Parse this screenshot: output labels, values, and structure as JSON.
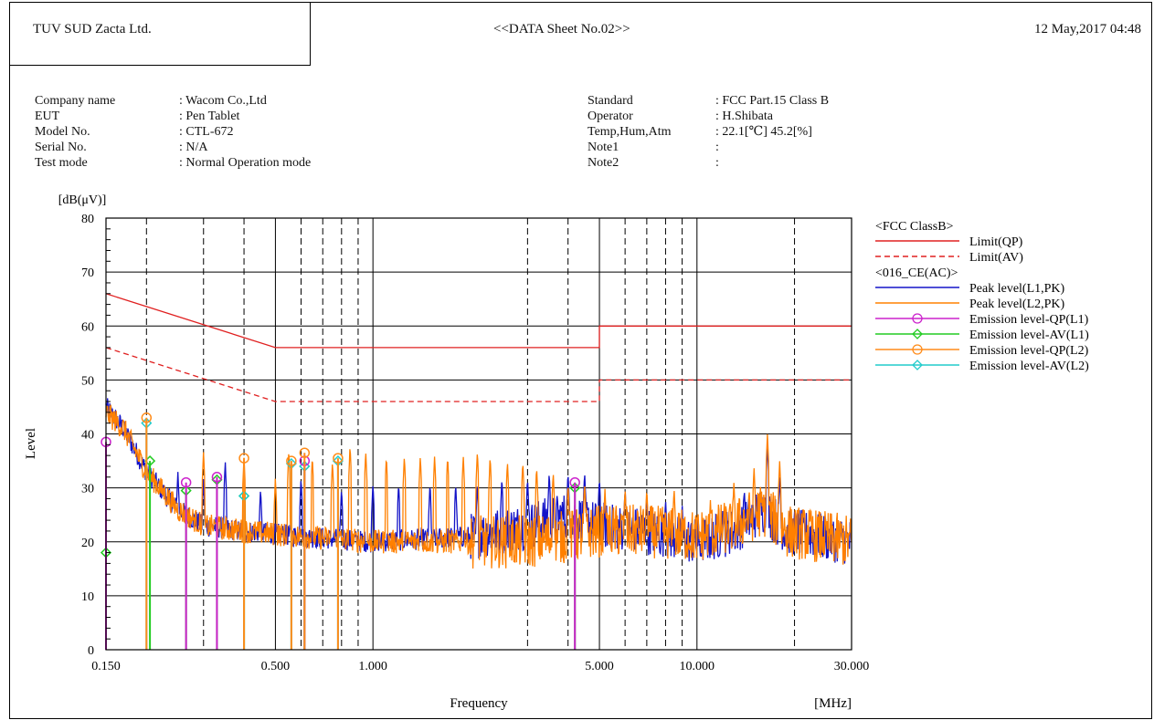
{
  "header": {
    "company": "TUV SUD Zacta Ltd.",
    "sheet_title": "<<DATA Sheet No.02>>",
    "datetime": "12 May,2017 04:48"
  },
  "info_left": [
    {
      "label": "Company name",
      "value": ": Wacom Co.,Ltd"
    },
    {
      "label": "EUT",
      "value": ": Pen Tablet"
    },
    {
      "label": "Model No.",
      "value": ": CTL-672"
    },
    {
      "label": "Serial No.",
      "value": ": N/A"
    },
    {
      "label": "Test mode",
      "value": ": Normal Operation mode"
    }
  ],
  "info_right": [
    {
      "label": "Standard",
      "value": ": FCC Part.15 Class B"
    },
    {
      "label": "Operator",
      "value": ": H.Shibata"
    },
    {
      "label": "Temp,Hum,Atm",
      "value": ": 22.1[℃] 45.2[%]"
    },
    {
      "label": "Note1",
      "value": ":"
    },
    {
      "label": "Note2",
      "value": ":"
    }
  ],
  "colors": {
    "limit": "#e02020",
    "peak_l1": "#1414c8",
    "peak_l2": "#ff8000",
    "qp_l1": "#cc22cc",
    "av_l1": "#22cc22",
    "qp_l2": "#ff8c1a",
    "av_l2": "#22cccc"
  },
  "chart_data": {
    "type": "line",
    "xlabel": "Frequency",
    "xunit": "[MHz]",
    "ylabel": "Level",
    "yunit": "[dB(μV)]",
    "x_scale": "log",
    "xlim": [
      0.15,
      30
    ],
    "ylim": [
      0,
      80
    ],
    "grid": true,
    "x_ticks": [
      {
        "value": 0.15,
        "label": "0.150"
      },
      {
        "value": 0.5,
        "label": "0.500"
      },
      {
        "value": 1,
        "label": "1.000"
      },
      {
        "value": 5,
        "label": "5.000"
      },
      {
        "value": 10,
        "label": "10.000"
      },
      {
        "value": 30,
        "label": "30.000"
      }
    ],
    "x_dashed_gridlines": [
      0.2,
      0.3,
      0.4,
      0.6,
      0.7,
      0.8,
      0.9,
      3,
      4,
      6,
      7,
      8,
      9,
      20
    ],
    "y_ticks": [
      0,
      10,
      20,
      30,
      40,
      50,
      60,
      70,
      80
    ],
    "legend_position": "right",
    "legend_groups": [
      {
        "title": "<FCC ClassB>",
        "entries": [
          {
            "key": "limit_qp",
            "name": "Limit(QP)"
          },
          {
            "key": "limit_av",
            "name": "Limit(AV)"
          }
        ]
      },
      {
        "title": "<016_CE(AC)>",
        "entries": [
          {
            "key": "peak_l1",
            "name": "Peak level(L1,PK)"
          },
          {
            "key": "peak_l2",
            "name": "Peak level(L2,PK)"
          },
          {
            "key": "qp_l1",
            "name": "Emission level-QP(L1)"
          },
          {
            "key": "av_l1",
            "name": "Emission level-AV(L1)"
          },
          {
            "key": "qp_l2",
            "name": "Emission level-QP(L2)"
          },
          {
            "key": "av_l2",
            "name": "Emission level-AV(L2)"
          }
        ]
      }
    ],
    "limit_qp": [
      [
        0.15,
        66
      ],
      [
        0.5,
        56
      ],
      [
        5,
        56
      ],
      [
        5,
        60
      ],
      [
        30,
        60
      ]
    ],
    "limit_av": [
      [
        0.15,
        56
      ],
      [
        0.5,
        46
      ],
      [
        5,
        46
      ],
      [
        5,
        50
      ],
      [
        30,
        50
      ]
    ],
    "peak_l1_envelope": [
      [
        0.15,
        45
      ],
      [
        0.17,
        41
      ],
      [
        0.2,
        33
      ],
      [
        0.25,
        26
      ],
      [
        0.3,
        23
      ],
      [
        0.4,
        22
      ],
      [
        0.6,
        21
      ],
      [
        1,
        20
      ],
      [
        2,
        21
      ],
      [
        3,
        23
      ],
      [
        4,
        25
      ],
      [
        5,
        23
      ],
      [
        7,
        22
      ],
      [
        10,
        20
      ],
      [
        13,
        22
      ],
      [
        16,
        26
      ],
      [
        19,
        22
      ],
      [
        30,
        20
      ]
    ],
    "peak_l2_envelope": [
      [
        0.15,
        44
      ],
      [
        0.17,
        41
      ],
      [
        0.2,
        33
      ],
      [
        0.25,
        26
      ],
      [
        0.3,
        23
      ],
      [
        0.4,
        22
      ],
      [
        0.6,
        21
      ],
      [
        1,
        20
      ],
      [
        2,
        20
      ],
      [
        3,
        20
      ],
      [
        4,
        21
      ],
      [
        5,
        22
      ],
      [
        7,
        22
      ],
      [
        10,
        21
      ],
      [
        13,
        23
      ],
      [
        16,
        26
      ],
      [
        19,
        22
      ],
      [
        30,
        20
      ]
    ],
    "spikes_l1": [
      [
        0.25,
        33
      ],
      [
        0.3,
        32
      ],
      [
        0.35,
        35
      ],
      [
        0.45,
        30
      ],
      [
        0.6,
        32
      ],
      [
        0.8,
        30
      ],
      [
        1.0,
        31
      ],
      [
        1.2,
        31
      ],
      [
        1.5,
        31
      ],
      [
        1.8,
        31
      ],
      [
        2.1,
        31
      ],
      [
        2.5,
        32
      ],
      [
        3.0,
        32
      ],
      [
        3.5,
        33
      ],
      [
        4.0,
        33
      ],
      [
        4.5,
        33
      ],
      [
        5.0,
        32
      ],
      [
        6.0,
        30
      ],
      [
        7.0,
        29
      ],
      [
        8.0,
        28
      ],
      [
        9.0,
        27
      ],
      [
        12.0,
        26
      ],
      [
        14.0,
        30
      ],
      [
        16.5,
        38
      ],
      [
        18.0,
        32
      ]
    ],
    "spikes_l2": [
      [
        0.3,
        37
      ],
      [
        0.4,
        36
      ],
      [
        0.5,
        32
      ],
      [
        0.55,
        37
      ],
      [
        0.65,
        36
      ],
      [
        0.75,
        35
      ],
      [
        0.85,
        38
      ],
      [
        0.95,
        37
      ],
      [
        1.1,
        36
      ],
      [
        1.25,
        36
      ],
      [
        1.4,
        36
      ],
      [
        1.55,
        36
      ],
      [
        1.7,
        36
      ],
      [
        1.9,
        36
      ],
      [
        2.1,
        37
      ],
      [
        2.3,
        36
      ],
      [
        2.6,
        35
      ],
      [
        2.9,
        35
      ],
      [
        3.2,
        34
      ],
      [
        3.6,
        33
      ],
      [
        4.0,
        31
      ],
      [
        4.5,
        31
      ],
      [
        5.2,
        30
      ],
      [
        6.0,
        30
      ],
      [
        7.0,
        30
      ],
      [
        8.5,
        30
      ],
      [
        11.0,
        28
      ],
      [
        13.0,
        31
      ],
      [
        15.0,
        34
      ],
      [
        16.5,
        40
      ],
      [
        18.0,
        35
      ]
    ],
    "qp_l1_points": [
      [
        0.15,
        38.5
      ],
      [
        0.265,
        31
      ],
      [
        0.33,
        32
      ],
      [
        0.615,
        35
      ],
      [
        4.2,
        31
      ]
    ],
    "av_l1_points": [
      [
        0.15,
        18
      ],
      [
        0.205,
        35
      ],
      [
        0.265,
        29.5
      ],
      [
        0.33,
        31.5
      ],
      [
        0.4,
        28.5
      ],
      [
        0.615,
        34
      ],
      [
        4.2,
        30
      ]
    ],
    "qp_l2_points": [
      [
        0.2,
        43
      ],
      [
        0.4,
        35.5
      ],
      [
        0.56,
        35
      ],
      [
        0.615,
        36.5
      ],
      [
        0.78,
        35.5
      ]
    ],
    "av_l2_points": [
      [
        0.2,
        42
      ],
      [
        0.4,
        28.5
      ],
      [
        0.56,
        34.5
      ],
      [
        0.615,
        34
      ],
      [
        0.78,
        35
      ]
    ]
  }
}
